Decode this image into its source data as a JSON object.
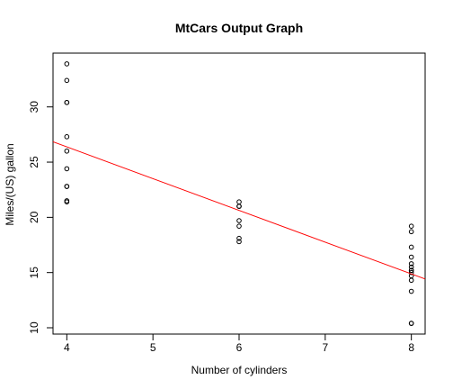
{
  "chart_data": {
    "type": "scatter",
    "title": "MtCars Output Graph",
    "xlabel": "Number of cylinders",
    "ylabel": "Miles/(US) gallon",
    "xlim": [
      3.84,
      8.16
    ],
    "ylim": [
      9.43,
      34.87
    ],
    "xticks": [
      4,
      5,
      6,
      7,
      8
    ],
    "yticks": [
      10,
      15,
      20,
      25,
      30
    ],
    "grid": false,
    "point_color": "#000000",
    "line_color": "#ff0000",
    "points": [
      {
        "x": 6,
        "y": 21.0
      },
      {
        "x": 6,
        "y": 21.0
      },
      {
        "x": 4,
        "y": 22.8
      },
      {
        "x": 6,
        "y": 21.4
      },
      {
        "x": 8,
        "y": 18.7
      },
      {
        "x": 6,
        "y": 18.1
      },
      {
        "x": 8,
        "y": 14.3
      },
      {
        "x": 4,
        "y": 24.4
      },
      {
        "x": 4,
        "y": 22.8
      },
      {
        "x": 6,
        "y": 19.2
      },
      {
        "x": 6,
        "y": 17.8
      },
      {
        "x": 8,
        "y": 16.4
      },
      {
        "x": 8,
        "y": 17.3
      },
      {
        "x": 8,
        "y": 15.2
      },
      {
        "x": 8,
        "y": 10.4
      },
      {
        "x": 8,
        "y": 10.4
      },
      {
        "x": 8,
        "y": 14.7
      },
      {
        "x": 4,
        "y": 32.4
      },
      {
        "x": 4,
        "y": 30.4
      },
      {
        "x": 4,
        "y": 33.9
      },
      {
        "x": 4,
        "y": 21.5
      },
      {
        "x": 8,
        "y": 15.5
      },
      {
        "x": 8,
        "y": 15.2
      },
      {
        "x": 8,
        "y": 13.3
      },
      {
        "x": 8,
        "y": 19.2
      },
      {
        "x": 4,
        "y": 27.3
      },
      {
        "x": 4,
        "y": 26.0
      },
      {
        "x": 4,
        "y": 30.4
      },
      {
        "x": 8,
        "y": 15.8
      },
      {
        "x": 6,
        "y": 19.7
      },
      {
        "x": 8,
        "y": 15.0
      },
      {
        "x": 4,
        "y": 21.4
      }
    ],
    "regression_line": {
      "intercept": 37.885,
      "slope": -2.876
    }
  }
}
